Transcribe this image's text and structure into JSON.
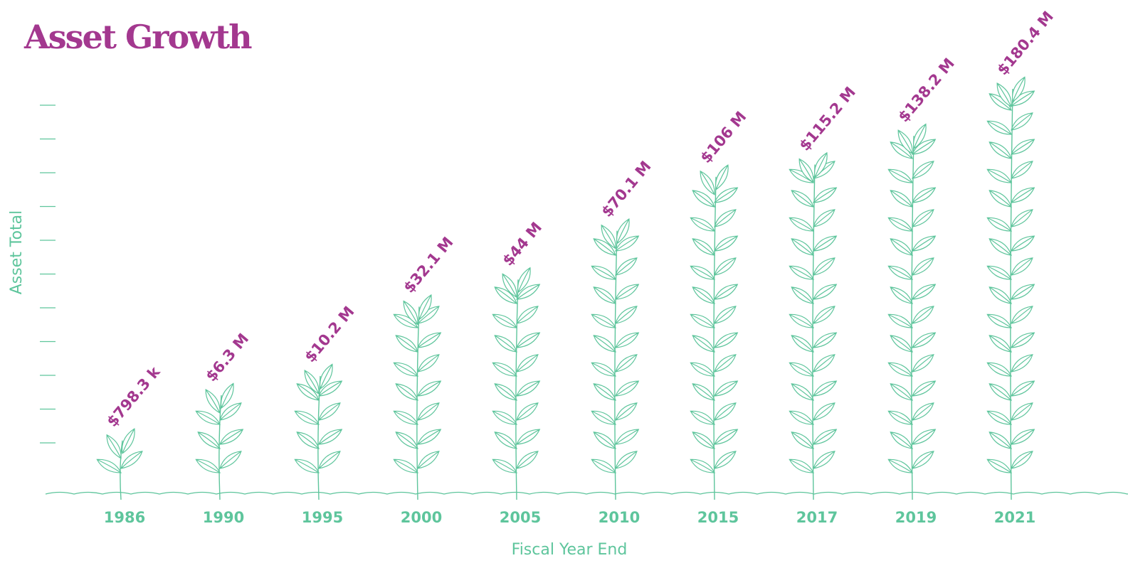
{
  "chart_data": {
    "type": "pictorial-bar",
    "title": "Asset Growth",
    "x_label": "Fiscal Year End",
    "y_label": "Asset Total",
    "categories": [
      "1986",
      "1990",
      "1995",
      "2000",
      "2005",
      "2010",
      "2015",
      "2017",
      "2019",
      "2021"
    ],
    "values": [
      798300,
      6300000,
      10200000,
      32100000,
      44000000,
      70100000,
      106000000,
      115200000,
      138200000,
      180400000
    ],
    "value_labels": [
      "$798.3 k",
      "$6.3 M",
      "$10.2 M",
      "$32.1 M",
      "$44 M",
      "$70.1 M",
      "$106 M",
      "$115.2 M",
      "$138.2 M",
      "$180.4 M"
    ],
    "color": "#5ec59c",
    "label_color": "#a3388f"
  }
}
